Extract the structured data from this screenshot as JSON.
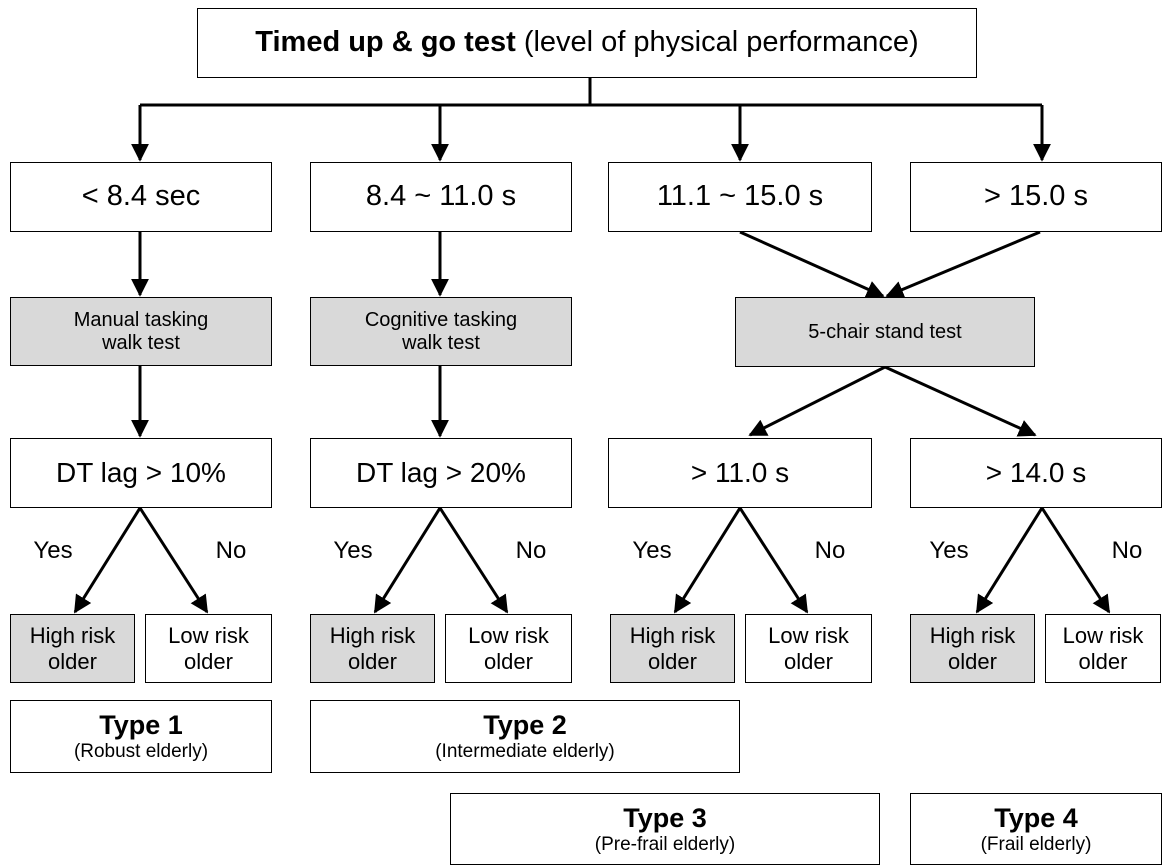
{
  "header": {
    "title": "Timed up & go test",
    "subtitle": "(level of physical performance)"
  },
  "branches": [
    {
      "time": "< 8.4 sec",
      "test": [
        "Manual tasking",
        "walk test"
      ],
      "criterion": "DT lag > 10%",
      "yes": "Yes",
      "no": "No",
      "high": [
        "High risk",
        "older"
      ],
      "low": [
        "Low risk",
        "older"
      ]
    },
    {
      "time": "8.4 ~ 11.0 s",
      "test": [
        "Cognitive tasking",
        "walk test"
      ],
      "criterion": "DT lag > 20%",
      "yes": "Yes",
      "no": "No",
      "high": [
        "High risk",
        "older"
      ],
      "low": [
        "Low risk",
        "older"
      ]
    },
    {
      "time": "11.1 ~ 15.0 s",
      "criterion": "> 11.0 s",
      "yes": "Yes",
      "no": "No",
      "high": [
        "High risk",
        "older"
      ],
      "low": [
        "Low risk",
        "older"
      ]
    },
    {
      "time": "> 15.0 s",
      "criterion": "> 14.0 s",
      "yes": "Yes",
      "no": "No",
      "high": [
        "High risk",
        "older"
      ],
      "low": [
        "Low risk",
        "older"
      ]
    }
  ],
  "shared_test": "5-chair stand test",
  "types": [
    {
      "name": "Type 1",
      "desc": "(Robust elderly)"
    },
    {
      "name": "Type 2",
      "desc": "(Intermediate elderly)"
    },
    {
      "name": "Type 3",
      "desc": "(Pre-frail elderly)"
    },
    {
      "name": "Type 4",
      "desc": "(Frail elderly)"
    }
  ]
}
